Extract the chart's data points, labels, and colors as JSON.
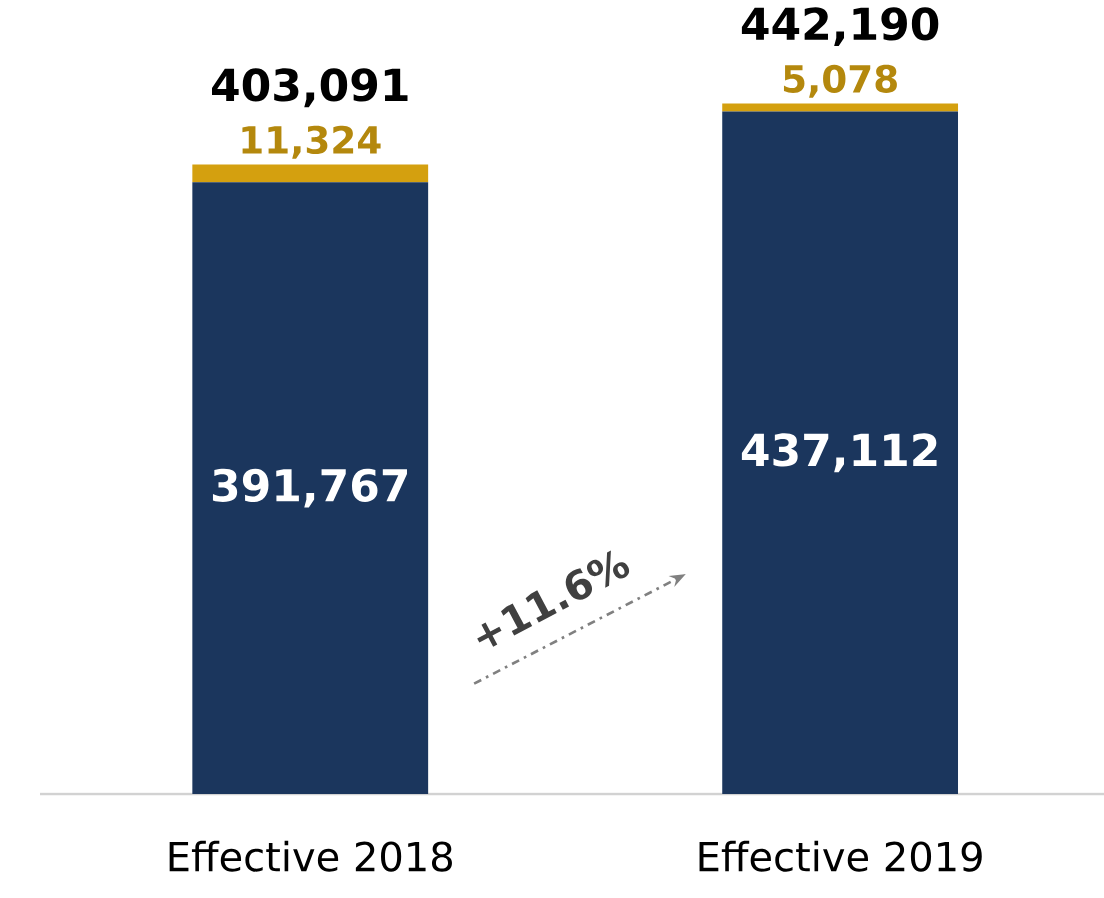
{
  "chart_data": {
    "type": "bar",
    "stacked": true,
    "categories": [
      "Effective 2018",
      "Effective 2019"
    ],
    "series": [
      {
        "color": "#1b365d",
        "values": [
          391767,
          437112
        ],
        "value_labels": [
          "391,767",
          "437,112"
        ]
      },
      {
        "color": "#d4a00f",
        "values": [
          11324,
          5078
        ],
        "value_labels": [
          "11,324",
          "5,078"
        ]
      }
    ],
    "totals": [
      "403,091",
      "442,190"
    ],
    "annotations": [
      "+11.6%"
    ]
  }
}
